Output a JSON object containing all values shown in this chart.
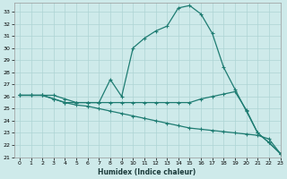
{
  "xlabel": "Humidex (Indice chaleur)",
  "bg_color": "#ceeaea",
  "line_color": "#1e7c72",
  "grid_color": "#aed4d4",
  "xlim": [
    -0.5,
    23
  ],
  "ylim": [
    21,
    33.7
  ],
  "yticks": [
    21,
    22,
    23,
    24,
    25,
    26,
    27,
    28,
    29,
    30,
    31,
    32,
    33
  ],
  "xticks": [
    0,
    1,
    2,
    3,
    4,
    5,
    6,
    7,
    8,
    9,
    10,
    11,
    12,
    13,
    14,
    15,
    16,
    17,
    18,
    19,
    20,
    21,
    22,
    23
  ],
  "series1_x": [
    0,
    1,
    2,
    3,
    4,
    5,
    6,
    7,
    8,
    9,
    10,
    11,
    12,
    13,
    14,
    15,
    16,
    17,
    18,
    19,
    20,
    21,
    22,
    23
  ],
  "series1_y": [
    26.1,
    26.1,
    26.1,
    26.1,
    25.8,
    25.5,
    25.5,
    25.5,
    27.4,
    26.0,
    30.0,
    30.8,
    31.4,
    31.8,
    33.3,
    33.5,
    32.8,
    31.2,
    28.4,
    26.6,
    24.8,
    23.0,
    22.2,
    21.3
  ],
  "series2_x": [
    0,
    1,
    2,
    3,
    4,
    5,
    6,
    7,
    8,
    9,
    10,
    11,
    12,
    13,
    14,
    15,
    16,
    17,
    18,
    19,
    20,
    21,
    22,
    23
  ],
  "series2_y": [
    26.1,
    26.1,
    26.1,
    25.8,
    25.5,
    25.5,
    25.5,
    25.5,
    25.5,
    25.5,
    25.5,
    25.5,
    25.5,
    25.5,
    25.5,
    25.5,
    25.8,
    26.0,
    26.2,
    26.4,
    24.9,
    23.0,
    22.2,
    21.3
  ],
  "series3_x": [
    0,
    1,
    2,
    3,
    4,
    5,
    6,
    7,
    8,
    9,
    10,
    11,
    12,
    13,
    14,
    15,
    16,
    17,
    18,
    19,
    20,
    21,
    22,
    23
  ],
  "series3_y": [
    26.1,
    26.1,
    26.1,
    25.8,
    25.5,
    25.3,
    25.2,
    25.0,
    24.8,
    24.6,
    24.4,
    24.2,
    24.0,
    23.8,
    23.6,
    23.4,
    23.3,
    23.2,
    23.1,
    23.0,
    22.9,
    22.8,
    22.5,
    21.3
  ]
}
